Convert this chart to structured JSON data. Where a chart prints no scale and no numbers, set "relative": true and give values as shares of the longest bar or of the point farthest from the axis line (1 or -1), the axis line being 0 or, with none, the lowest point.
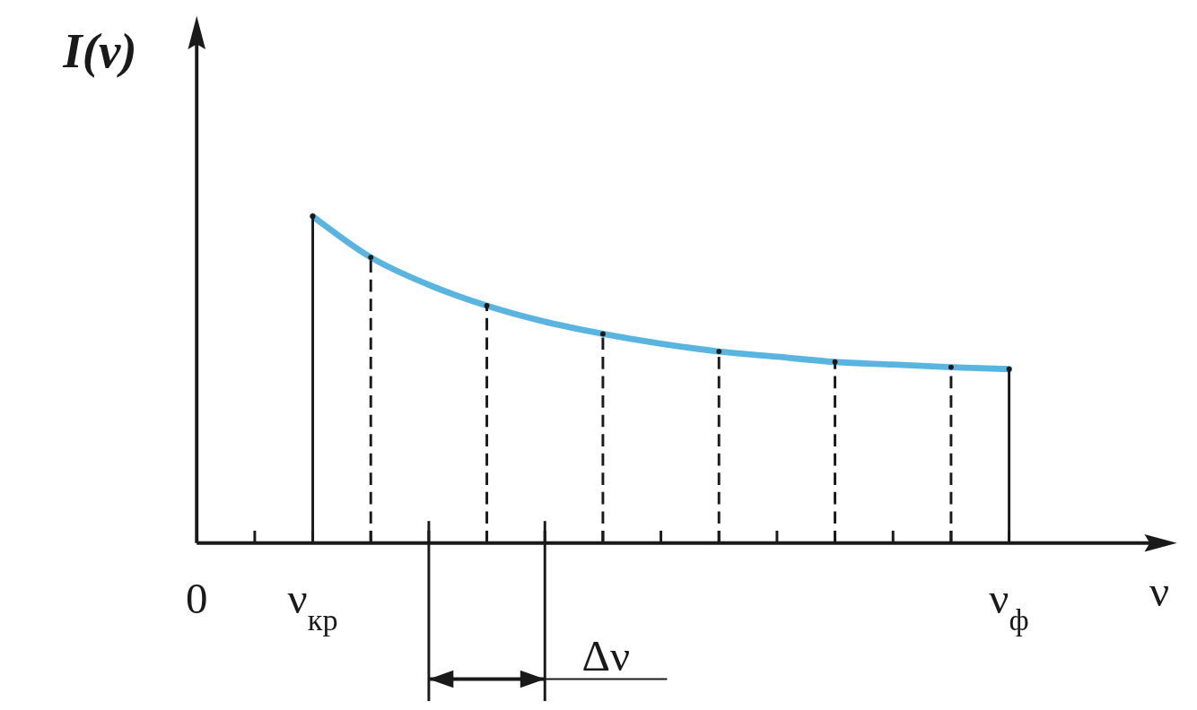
{
  "chart_data": {
    "type": "line",
    "relative": true,
    "xlabel": "ν",
    "ylabel": "I(ν)",
    "categories": [
      "0",
      null,
      "ν$_{кр}$",
      null,
      null,
      null,
      null,
      null,
      null,
      null,
      null,
      null,
      null,
      null,
      "ν$_{ф}$"
    ],
    "series": [
      {
        "color": "#5ab4e0",
        "values": [
          null,
          null,
          1,
          0.874,
          0.79,
          0.726,
          0.677,
          0.64,
          0.61,
          0.586,
          0.57,
          0.554,
          0.546,
          0.538,
          0.532
        ]
      },
      {
        "type": "lollipop",
        "color": "#1a1a1a",
        "line_style": "solid",
        "values": [
          null,
          null,
          1,
          null,
          null,
          null,
          null,
          null,
          null,
          null,
          null,
          null,
          null,
          null,
          0.532
        ]
      },
      {
        "type": "lollipop",
        "color": "#1a1a1a",
        "line_style": "dashed",
        "values": [
          null,
          null,
          null,
          0.874,
          null,
          0.726,
          null,
          0.64,
          null,
          0.586,
          null,
          0.554,
          null,
          0.538,
          null
        ]
      }
    ],
    "annotations": [
      "Δν"
    ]
  }
}
